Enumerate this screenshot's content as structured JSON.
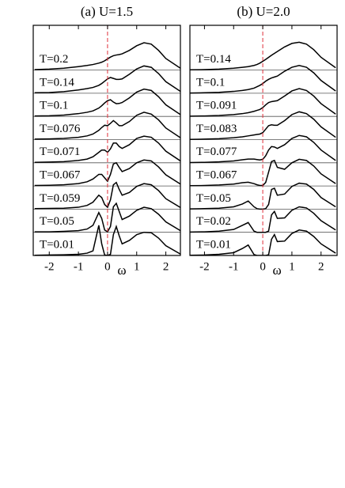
{
  "chart_data": [
    {
      "type": "line",
      "title": "(a) U=1.5",
      "xlabel": "ω",
      "xlim": [
        -2.55,
        2.5
      ],
      "xticks": [
        -2,
        -1,
        0,
        1,
        2
      ],
      "reference_line": {
        "x": 0,
        "color": "#e0303a"
      },
      "x": [
        -2.5,
        -2,
        -1.5,
        -1,
        -0.7,
        -0.5,
        -0.3,
        -0.2,
        -0.1,
        0,
        0.1,
        0.2,
        0.3,
        0.4,
        0.5,
        0.75,
        1,
        1.25,
        1.5,
        1.75,
        2,
        2.5
      ],
      "series": [
        {
          "name": "T=0.2",
          "color": "#000000",
          "values": [
            0.02,
            0.04,
            0.08,
            0.15,
            0.2,
            0.24,
            0.3,
            0.34,
            0.4,
            0.48,
            0.56,
            0.62,
            0.65,
            0.67,
            0.7,
            0.85,
            1.05,
            1.18,
            1.12,
            0.85,
            0.5,
            0.08
          ]
        },
        {
          "name": "T=0.14",
          "color": "#000000",
          "values": [
            0.02,
            0.03,
            0.07,
            0.14,
            0.2,
            0.25,
            0.34,
            0.42,
            0.52,
            0.62,
            0.68,
            0.64,
            0.6,
            0.6,
            0.62,
            0.82,
            1.05,
            1.18,
            1.12,
            0.85,
            0.5,
            0.08
          ]
        },
        {
          "name": "T=0.1",
          "color": "#000000",
          "values": [
            0.02,
            0.03,
            0.06,
            0.12,
            0.18,
            0.24,
            0.36,
            0.46,
            0.58,
            0.68,
            0.72,
            0.62,
            0.55,
            0.56,
            0.6,
            0.8,
            1.05,
            1.18,
            1.12,
            0.85,
            0.5,
            0.08
          ]
        },
        {
          "name": "T=0.076",
          "color": "#000000",
          "values": [
            0.02,
            0.03,
            0.05,
            0.1,
            0.16,
            0.24,
            0.4,
            0.52,
            0.62,
            0.6,
            0.7,
            0.82,
            0.72,
            0.6,
            0.6,
            0.78,
            1.05,
            1.18,
            1.1,
            0.85,
            0.5,
            0.08
          ]
        },
        {
          "name": "T=0.071",
          "color": "#000000",
          "values": [
            0.02,
            0.03,
            0.05,
            0.1,
            0.16,
            0.26,
            0.45,
            0.55,
            0.55,
            0.45,
            0.6,
            0.85,
            0.85,
            0.7,
            0.62,
            0.78,
            1.05,
            1.15,
            1.1,
            0.85,
            0.5,
            0.08
          ]
        },
        {
          "name": "T=0.067",
          "color": "#000000",
          "values": [
            0.02,
            0.03,
            0.05,
            0.1,
            0.18,
            0.3,
            0.5,
            0.5,
            0.35,
            0.2,
            0.5,
            0.95,
            1.0,
            0.8,
            0.62,
            0.75,
            1.0,
            1.12,
            1.08,
            0.82,
            0.48,
            0.08
          ]
        },
        {
          "name": "T=0.059",
          "color": "#000000",
          "values": [
            0.02,
            0.03,
            0.04,
            0.08,
            0.16,
            0.3,
            0.6,
            0.5,
            0.2,
            0.08,
            0.4,
            1.05,
            1.15,
            0.85,
            0.6,
            0.72,
            0.98,
            1.1,
            1.05,
            0.8,
            0.45,
            0.07
          ]
        },
        {
          "name": "T=0.05",
          "color": "#000000",
          "values": [
            0.02,
            0.02,
            0.04,
            0.07,
            0.14,
            0.3,
            0.85,
            0.6,
            0.1,
            0.02,
            0.25,
            1.1,
            1.25,
            0.9,
            0.55,
            0.7,
            0.95,
            1.08,
            1.02,
            0.78,
            0.45,
            0.07
          ]
        },
        {
          "name": "T=0.01",
          "color": "#000000",
          "values": [
            0.01,
            0.02,
            0.03,
            0.05,
            0.1,
            0.2,
            1.3,
            0.5,
            0.02,
            0,
            0.05,
            0.9,
            1.25,
            0.85,
            0.5,
            0.65,
            0.9,
            1.0,
            0.98,
            0.75,
            0.42,
            0.06
          ]
        }
      ]
    },
    {
      "type": "line",
      "title": "(b) U=2.0",
      "xlabel": "ω",
      "xlim": [
        -2.5,
        2.55
      ],
      "xticks": [
        -2,
        -1,
        0,
        1,
        2
      ],
      "reference_line": {
        "x": 0,
        "color": "#e0303a"
      },
      "x": [
        -2.5,
        -2,
        -1.5,
        -1,
        -0.7,
        -0.5,
        -0.3,
        -0.2,
        -0.1,
        0,
        0.1,
        0.2,
        0.3,
        0.4,
        0.5,
        0.75,
        1,
        1.25,
        1.5,
        1.75,
        2,
        2.5
      ],
      "series": [
        {
          "name": "T=0.14",
          "color": "#000000",
          "values": [
            0.01,
            0.02,
            0.04,
            0.08,
            0.12,
            0.15,
            0.2,
            0.24,
            0.3,
            0.38,
            0.46,
            0.55,
            0.64,
            0.72,
            0.8,
            1.0,
            1.15,
            1.2,
            1.12,
            0.88,
            0.55,
            0.1
          ]
        },
        {
          "name": "T=0.1",
          "color": "#000000",
          "values": [
            0.01,
            0.02,
            0.04,
            0.08,
            0.12,
            0.16,
            0.22,
            0.28,
            0.34,
            0.42,
            0.52,
            0.6,
            0.66,
            0.7,
            0.74,
            0.95,
            1.12,
            1.2,
            1.12,
            0.88,
            0.55,
            0.1
          ]
        },
        {
          "name": "T=0.091",
          "color": "#000000",
          "values": [
            0.01,
            0.02,
            0.04,
            0.08,
            0.12,
            0.16,
            0.22,
            0.26,
            0.3,
            0.38,
            0.5,
            0.6,
            0.64,
            0.66,
            0.68,
            0.88,
            1.1,
            1.2,
            1.12,
            0.88,
            0.55,
            0.1
          ]
        },
        {
          "name": "T=0.083",
          "color": "#000000",
          "values": [
            0.01,
            0.02,
            0.04,
            0.08,
            0.12,
            0.16,
            0.2,
            0.22,
            0.24,
            0.3,
            0.45,
            0.6,
            0.64,
            0.62,
            0.62,
            0.82,
            1.08,
            1.2,
            1.12,
            0.88,
            0.55,
            0.1
          ]
        },
        {
          "name": "T=0.077",
          "color": "#000000",
          "values": [
            0.01,
            0.02,
            0.04,
            0.08,
            0.13,
            0.16,
            0.16,
            0.14,
            0.12,
            0.15,
            0.3,
            0.55,
            0.7,
            0.68,
            0.62,
            0.78,
            1.05,
            1.18,
            1.12,
            0.88,
            0.55,
            0.1
          ]
        },
        {
          "name": "T=0.067",
          "color": "#000000",
          "values": [
            0.01,
            0.02,
            0.04,
            0.08,
            0.14,
            0.16,
            0.1,
            0.05,
            0.02,
            0.02,
            0.15,
            0.6,
            1.05,
            1.1,
            0.8,
            0.72,
            1.0,
            1.15,
            1.1,
            0.86,
            0.52,
            0.1
          ]
        },
        {
          "name": "T=0.05",
          "color": "#000000",
          "values": [
            0.01,
            0.02,
            0.04,
            0.1,
            0.22,
            0.35,
            0.1,
            0.02,
            0,
            0,
            0.02,
            0.2,
            0.85,
            0.9,
            0.6,
            0.65,
            0.98,
            1.12,
            1.08,
            0.85,
            0.5,
            0.1
          ]
        },
        {
          "name": "T=0.02",
          "color": "#000000",
          "values": [
            0.01,
            0.02,
            0.05,
            0.12,
            0.3,
            0.42,
            0.05,
            0,
            0,
            0,
            0,
            0.05,
            0.75,
            0.9,
            0.6,
            0.62,
            0.95,
            1.1,
            1.05,
            0.82,
            0.5,
            0.1
          ]
        },
        {
          "name": "T=0.01",
          "color": "#000000",
          "values": [
            0.01,
            0.02,
            0.05,
            0.12,
            0.3,
            0.45,
            0.04,
            0,
            0,
            0,
            0,
            0.03,
            0.7,
            0.9,
            0.6,
            0.62,
            0.95,
            1.1,
            1.05,
            0.82,
            0.5,
            0.1
          ]
        }
      ]
    }
  ]
}
